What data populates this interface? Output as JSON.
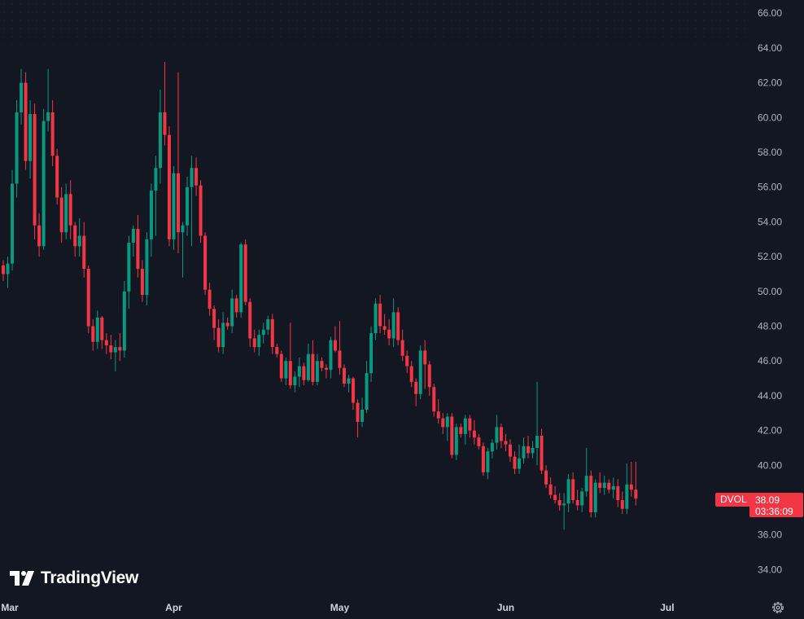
{
  "legend": {
    "symbol": "DVOL",
    "last_price": "38.09",
    "countdown": "03:36:09"
  },
  "branding": {
    "logo_text": "TradingView"
  },
  "colors": {
    "background": "#131722",
    "up": "#089981",
    "down": "#f23645",
    "axis_text": "#b2b5be"
  },
  "icons": {
    "settings": "gear-icon",
    "logo": "tradingview-logo-icon"
  },
  "chart_data": {
    "type": "candlestick",
    "symbol": "DVOL",
    "y_axis": {
      "position": "right",
      "ticks": [
        "66.00",
        "64.00",
        "62.00",
        "60.00",
        "58.00",
        "56.00",
        "54.00",
        "52.00",
        "50.00",
        "48.00",
        "46.00",
        "44.00",
        "42.00",
        "40.00",
        "38.00",
        "36.00",
        "34.00"
      ],
      "ylim": [
        32.6,
        66.3
      ]
    },
    "x_axis": {
      "ticks": [
        {
          "label": "Mar",
          "index": 0
        },
        {
          "label": "Apr",
          "index": 38
        },
        {
          "label": "May",
          "index": 75
        },
        {
          "label": "Jun",
          "index": 112
        },
        {
          "label": "Jul",
          "index": 148
        }
      ]
    },
    "last_price": 38.09,
    "candles": [
      [
        51.5,
        51.8,
        50.6,
        51.0
      ],
      [
        51.0,
        52.0,
        50.2,
        51.6
      ],
      [
        51.6,
        57.0,
        51.2,
        56.2
      ],
      [
        56.2,
        61.0,
        55.4,
        60.3
      ],
      [
        60.3,
        62.8,
        59.6,
        62.0
      ],
      [
        62.0,
        62.6,
        57.0,
        57.5
      ],
      [
        57.5,
        61.0,
        56.5,
        60.2
      ],
      [
        60.2,
        60.8,
        53.0,
        53.8
      ],
      [
        53.8,
        54.5,
        52.0,
        52.6
      ],
      [
        52.6,
        60.5,
        52.4,
        59.8
      ],
      [
        59.8,
        62.8,
        59.2,
        60.3
      ],
      [
        60.3,
        61.0,
        57.2,
        57.8
      ],
      [
        57.8,
        58.2,
        55.0,
        55.4
      ],
      [
        55.4,
        56.0,
        52.8,
        53.4
      ],
      [
        53.4,
        56.2,
        53.0,
        55.6
      ],
      [
        55.6,
        56.4,
        53.0,
        53.8
      ],
      [
        53.8,
        54.0,
        52.0,
        52.6
      ],
      [
        52.6,
        54.2,
        52.0,
        53.2
      ],
      [
        53.2,
        54.0,
        50.8,
        51.3
      ],
      [
        51.3,
        51.5,
        47.6,
        48.0
      ],
      [
        48.0,
        48.4,
        46.6,
        47.1
      ],
      [
        47.1,
        48.9,
        46.7,
        48.5
      ],
      [
        48.5,
        48.6,
        46.7,
        47.2
      ],
      [
        47.2,
        47.6,
        46.4,
        46.9
      ],
      [
        46.9,
        47.5,
        46.1,
        46.5
      ],
      [
        46.5,
        47.2,
        45.4,
        46.8
      ],
      [
        46.8,
        47.6,
        46.0,
        46.6
      ],
      [
        46.6,
        50.6,
        46.2,
        50.0
      ],
      [
        50.0,
        53.2,
        49.0,
        52.8
      ],
      [
        52.8,
        53.8,
        52.0,
        53.6
      ],
      [
        53.6,
        54.4,
        50.8,
        51.3
      ],
      [
        51.3,
        51.8,
        49.4,
        49.8
      ],
      [
        49.8,
        53.4,
        49.2,
        53.0
      ],
      [
        53.0,
        56.2,
        52.0,
        55.8
      ],
      [
        55.8,
        57.8,
        53.2,
        57.1
      ],
      [
        57.1,
        61.6,
        56.2,
        60.3
      ],
      [
        60.3,
        63.2,
        58.4,
        59.0
      ],
      [
        59.0,
        59.5,
        52.6,
        53.0
      ],
      [
        53.0,
        57.2,
        52.4,
        56.8
      ],
      [
        56.8,
        62.6,
        52.2,
        53.4
      ],
      [
        53.4,
        54.0,
        50.8,
        53.8
      ],
      [
        53.8,
        56.6,
        53.2,
        56.0
      ],
      [
        56.0,
        57.8,
        52.6,
        57.1
      ],
      [
        57.1,
        57.7,
        55.5,
        56.1
      ],
      [
        56.1,
        56.4,
        52.8,
        53.2
      ],
      [
        53.2,
        53.4,
        49.8,
        50.1
      ],
      [
        50.1,
        50.5,
        48.6,
        49.0
      ],
      [
        49.0,
        49.2,
        47.2,
        47.9
      ],
      [
        47.9,
        48.4,
        46.5,
        46.8
      ],
      [
        46.8,
        48.8,
        46.4,
        48.2
      ],
      [
        48.2,
        48.5,
        47.8,
        48.0
      ],
      [
        48.0,
        50.1,
        47.6,
        49.6
      ],
      [
        49.6,
        49.8,
        48.5,
        48.8
      ],
      [
        48.8,
        52.8,
        48.5,
        52.7
      ],
      [
        52.7,
        53.0,
        49.2,
        49.4
      ],
      [
        49.4,
        49.6,
        46.8,
        47.3
      ],
      [
        47.3,
        47.8,
        46.5,
        46.8
      ],
      [
        46.8,
        47.8,
        46.3,
        47.5
      ],
      [
        47.5,
        48.2,
        47.0,
        47.8
      ],
      [
        47.8,
        48.6,
        47.5,
        48.4
      ],
      [
        48.4,
        48.7,
        46.4,
        46.8
      ],
      [
        46.8,
        47.0,
        46.2,
        46.4
      ],
      [
        46.4,
        46.6,
        44.8,
        45.0
      ],
      [
        45.0,
        46.2,
        44.6,
        46.0
      ],
      [
        46.0,
        48.2,
        44.4,
        44.6
      ],
      [
        44.6,
        45.4,
        44.2,
        45.1
      ],
      [
        45.1,
        46.2,
        44.5,
        45.7
      ],
      [
        45.7,
        45.9,
        44.6,
        44.9
      ],
      [
        44.9,
        47.0,
        44.8,
        46.4
      ],
      [
        46.4,
        47.2,
        44.6,
        44.8
      ],
      [
        44.8,
        46.4,
        44.6,
        46.0
      ],
      [
        46.0,
        46.2,
        45.4,
        45.6
      ],
      [
        45.6,
        45.8,
        45.0,
        45.5
      ],
      [
        45.5,
        47.4,
        45.0,
        47.2
      ],
      [
        47.2,
        48.0,
        46.5,
        46.6
      ],
      [
        46.6,
        48.3,
        45.2,
        45.6
      ],
      [
        45.6,
        45.8,
        44.5,
        44.7
      ],
      [
        44.7,
        45.2,
        44.2,
        45.0
      ],
      [
        45.0,
        45.1,
        43.2,
        43.6
      ],
      [
        43.6,
        43.8,
        41.6,
        42.5
      ],
      [
        42.5,
        43.9,
        42.2,
        43.2
      ],
      [
        43.2,
        46.0,
        43.0,
        45.3
      ],
      [
        45.3,
        48.0,
        44.8,
        47.6
      ],
      [
        47.6,
        49.6,
        47.2,
        49.3
      ],
      [
        49.3,
        49.8,
        47.6,
        48.0
      ],
      [
        48.0,
        48.7,
        47.5,
        47.8
      ],
      [
        47.8,
        48.4,
        46.9,
        47.3
      ],
      [
        47.3,
        49.6,
        46.8,
        48.8
      ],
      [
        48.8,
        49.1,
        46.9,
        47.2
      ],
      [
        47.2,
        47.8,
        46.0,
        46.3
      ],
      [
        46.3,
        46.6,
        45.3,
        45.7
      ],
      [
        45.7,
        46.0,
        44.5,
        44.8
      ],
      [
        44.8,
        45.0,
        43.4,
        44.1
      ],
      [
        44.1,
        46.9,
        43.8,
        46.6
      ],
      [
        46.6,
        47.2,
        44.4,
        45.8
      ],
      [
        45.8,
        46.0,
        44.0,
        44.5
      ],
      [
        44.5,
        44.7,
        42.8,
        43.1
      ],
      [
        43.1,
        43.8,
        42.4,
        42.7
      ],
      [
        42.7,
        43.0,
        41.8,
        42.2
      ],
      [
        42.2,
        43.0,
        41.4,
        42.8
      ],
      [
        42.8,
        43.0,
        40.4,
        40.6
      ],
      [
        40.6,
        42.4,
        40.3,
        42.2
      ],
      [
        42.2,
        42.4,
        41.6,
        41.8
      ],
      [
        41.8,
        42.9,
        41.2,
        42.7
      ],
      [
        42.7,
        42.9,
        41.6,
        42.0
      ],
      [
        42.0,
        42.6,
        41.2,
        41.6
      ],
      [
        41.6,
        41.8,
        40.9,
        41.1
      ],
      [
        41.1,
        41.3,
        39.4,
        39.6
      ],
      [
        39.6,
        41.0,
        39.2,
        40.8
      ],
      [
        40.8,
        41.5,
        40.4,
        41.3
      ],
      [
        41.3,
        42.9,
        40.9,
        42.2
      ],
      [
        42.2,
        42.4,
        41.0,
        41.4
      ],
      [
        41.4,
        41.8,
        40.8,
        41.2
      ],
      [
        41.2,
        41.5,
        40.2,
        40.5
      ],
      [
        40.5,
        40.8,
        39.5,
        39.8
      ],
      [
        39.8,
        41.2,
        39.5,
        40.4
      ],
      [
        40.4,
        41.6,
        40.1,
        41.1
      ],
      [
        41.1,
        41.7,
        40.4,
        40.7
      ],
      [
        40.7,
        41.4,
        40.4,
        41.0
      ],
      [
        41.0,
        44.8,
        40.0,
        41.7
      ],
      [
        41.7,
        42.1,
        39.5,
        39.7
      ],
      [
        39.7,
        40.0,
        38.7,
        38.9
      ],
      [
        38.9,
        39.3,
        38.1,
        38.3
      ],
      [
        38.3,
        38.8,
        37.8,
        38.0
      ],
      [
        38.0,
        38.4,
        37.4,
        37.7
      ],
      [
        37.7,
        38.4,
        36.3,
        37.8
      ],
      [
        37.8,
        39.5,
        37.3,
        39.2
      ],
      [
        39.2,
        39.6,
        37.8,
        38.0
      ],
      [
        38.0,
        38.6,
        37.4,
        37.7
      ],
      [
        37.7,
        38.7,
        37.3,
        38.5
      ],
      [
        38.5,
        41.0,
        38.2,
        39.4
      ],
      [
        39.4,
        39.7,
        37.0,
        37.3
      ],
      [
        37.3,
        39.2,
        37.0,
        39.0
      ],
      [
        39.0,
        39.6,
        38.4,
        38.7
      ],
      [
        38.7,
        39.4,
        38.3,
        39.0
      ],
      [
        39.0,
        39.2,
        38.4,
        38.6
      ],
      [
        38.6,
        39.3,
        38.1,
        38.8
      ],
      [
        38.8,
        39.2,
        37.6,
        38.0
      ],
      [
        38.0,
        38.5,
        37.2,
        37.5
      ],
      [
        37.5,
        40.1,
        37.2,
        38.9
      ],
      [
        38.9,
        40.2,
        38.2,
        38.6
      ],
      [
        38.6,
        40.2,
        37.7,
        38.09
      ]
    ]
  }
}
